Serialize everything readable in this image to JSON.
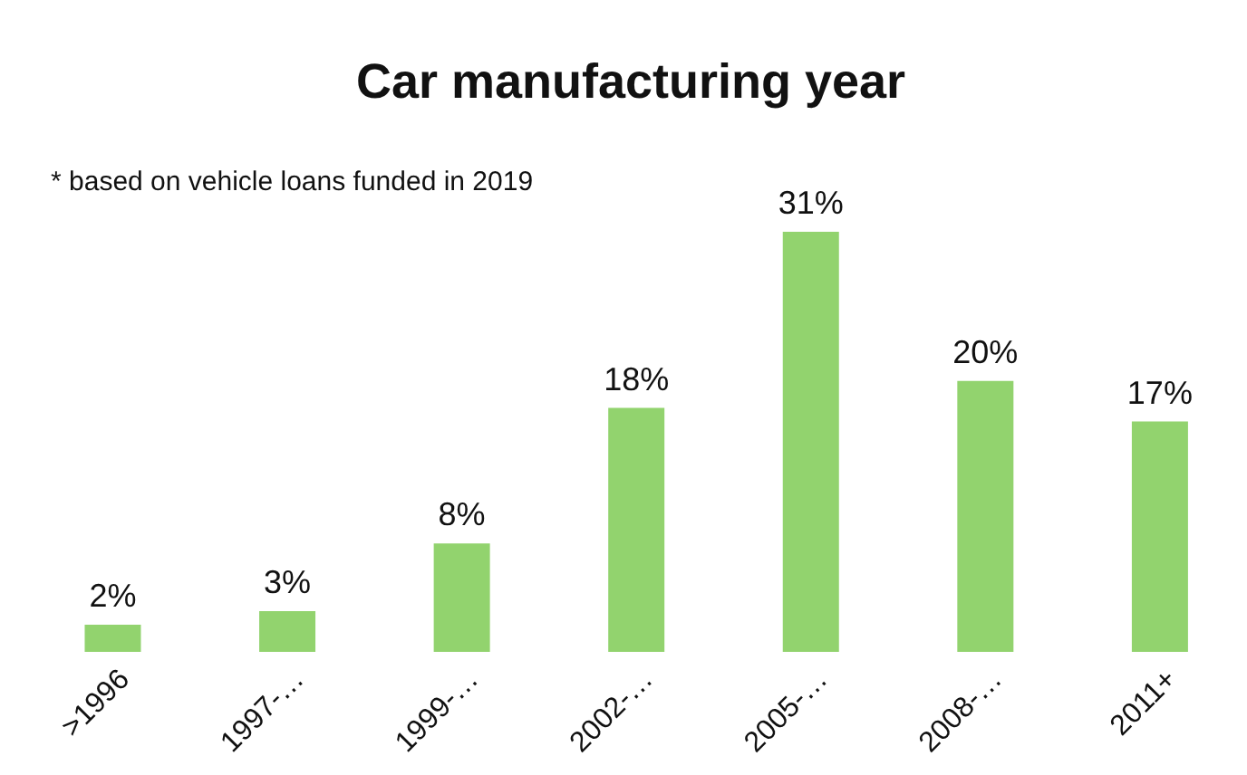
{
  "chart_data": {
    "type": "bar",
    "title": "Car manufacturing year",
    "annotations": [
      "* based on vehicle loans funded in 2019"
    ],
    "categories": [
      ">1996",
      "1997-…",
      "1999-…",
      "2002-…",
      "2005-…",
      "2008-…",
      "2011+"
    ],
    "values": [
      2,
      3,
      8,
      18,
      31,
      20,
      17
    ],
    "value_labels": [
      "2%",
      "3%",
      "8%",
      "18%",
      "31%",
      "20%",
      "17%"
    ],
    "color": "#92d36e",
    "grid": false,
    "legend": false
  }
}
